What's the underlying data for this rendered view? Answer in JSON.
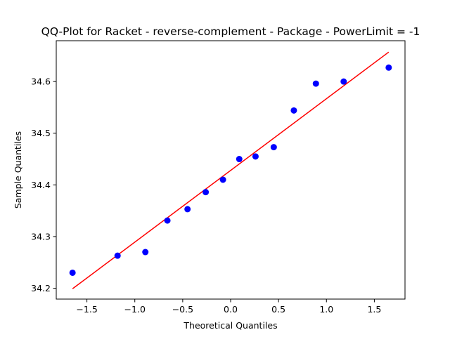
{
  "chart_data": {
    "type": "scatter",
    "title": "QQ-Plot for Racket - reverse-complement - Package - PowerLimit = -1",
    "xlabel": "Theoretical Quantiles",
    "ylabel": "Sample Quantiles",
    "xlim": [
      -1.82,
      1.82
    ],
    "ylim": [
      34.179,
      34.679
    ],
    "x_ticks": [
      -1.5,
      -1.0,
      -0.5,
      0.0,
      0.5,
      1.0,
      1.5
    ],
    "x_tick_labels": [
      "−1.5",
      "−1.0",
      "−0.5",
      "0.0",
      "0.5",
      "1.0",
      "1.5"
    ],
    "y_ticks": [
      34.2,
      34.3,
      34.4,
      34.5,
      34.6
    ],
    "y_tick_labels": [
      "34.2",
      "34.3",
      "34.4",
      "34.5",
      "34.6"
    ],
    "grid": false,
    "legend": "none",
    "series": [
      {
        "kind": "points",
        "color": "#0000ff",
        "x": [
          -1.65,
          -1.18,
          -0.89,
          -0.66,
          -0.45,
          -0.26,
          -0.08,
          0.09,
          0.26,
          0.45,
          0.66,
          0.89,
          1.18,
          1.65
        ],
        "y": [
          34.23,
          34.263,
          34.27,
          34.331,
          34.353,
          34.386,
          34.41,
          34.45,
          34.455,
          34.473,
          34.544,
          34.596,
          34.6,
          34.627
        ]
      },
      {
        "kind": "line",
        "color": "#ff0000",
        "x": [
          -1.65,
          1.65
        ],
        "y": [
          34.199,
          34.657
        ]
      }
    ]
  }
}
